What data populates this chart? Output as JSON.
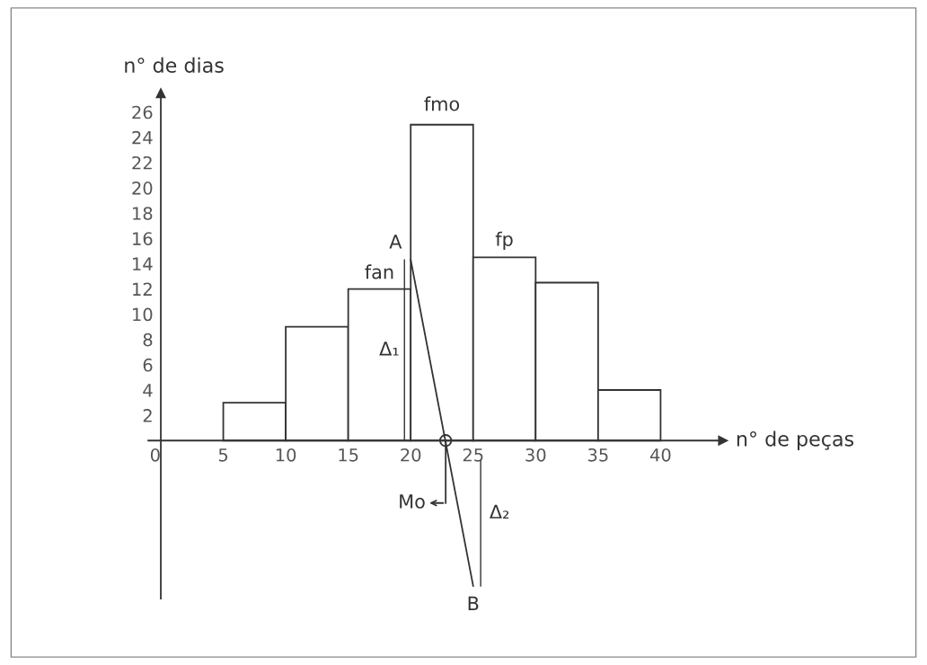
{
  "chart_data": {
    "type": "histogram",
    "xlabel": "n° de peças",
    "ylabel": "n° de dias",
    "bins": [
      5,
      10,
      15,
      20,
      25,
      30,
      35,
      40
    ],
    "values": [
      3,
      9,
      12,
      25,
      14.5,
      12.5,
      4
    ],
    "color": "#ffffff",
    "series": [
      {
        "type": "line",
        "color": "#333333",
        "x": [
          20,
          25
        ],
        "values": [
          14.3,
          -11.5
        ]
      },
      {
        "type": "scatter",
        "color": "#333333",
        "x": [
          22.8
        ],
        "values": [
          0
        ],
        "marker": "circle"
      }
    ],
    "xlim": [
      -1,
      45
    ],
    "ylim": [
      -12.5,
      27.5
    ],
    "xticks": [
      0,
      5,
      10,
      15,
      20,
      25,
      30,
      35,
      40
    ],
    "yticks": [
      2,
      4,
      6,
      8,
      10,
      12,
      14,
      16,
      18,
      20,
      22,
      24,
      26
    ],
    "annotations": [
      {
        "text": "fan",
        "x": 17.5,
        "y": 12
      },
      {
        "text": "fmo",
        "x": 22.5,
        "y": 25
      },
      {
        "text": "fp",
        "x": 27.5,
        "y": 14.5
      },
      {
        "text": "A",
        "x": 20,
        "y": 14.3
      },
      {
        "text": "B",
        "x": 25,
        "y": -11.5
      },
      "Δ₁",
      "Δ₂",
      {
        "text": "Mo",
        "x": 22.8,
        "y": 0
      }
    ],
    "grid": false
  }
}
